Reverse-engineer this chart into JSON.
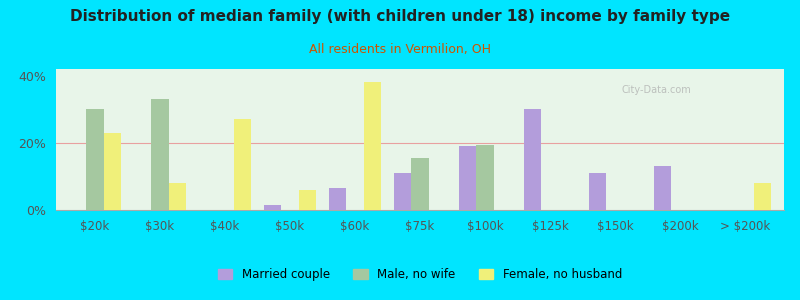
{
  "title": "Distribution of median family (with children under 18) income by family type",
  "subtitle": "All residents in Vermilion, OH",
  "categories": [
    "$20k",
    "$30k",
    "$40k",
    "$50k",
    "$60k",
    "$75k",
    "$100k",
    "$125k",
    "$150k",
    "$200k",
    "> $200k"
  ],
  "married_couple": [
    0,
    0,
    0,
    1.5,
    6.5,
    11,
    19,
    30,
    11,
    13,
    0
  ],
  "male_no_wife": [
    30,
    33,
    0,
    0,
    0,
    15.5,
    19.5,
    0,
    0,
    0,
    0
  ],
  "female_no_husband": [
    23,
    8,
    27,
    6,
    38,
    0,
    0,
    0,
    0,
    0,
    8
  ],
  "colors": {
    "married_couple": "#b39ddb",
    "male_no_wife": "#a5c8a0",
    "female_no_husband": "#f0f07a"
  },
  "background_outer": "#00e5ff",
  "background_chart_top": "#e8f5e9",
  "background_chart_bot": "#f5f9f5",
  "ylim": [
    0,
    42
  ],
  "yticks": [
    0,
    20,
    40
  ],
  "ytick_labels": [
    "0%",
    "20%",
    "40%"
  ],
  "grid_color": "#e8a0a0",
  "bar_width": 0.27,
  "watermark": "City-Data.com",
  "subtitle_color": "#cc5500"
}
